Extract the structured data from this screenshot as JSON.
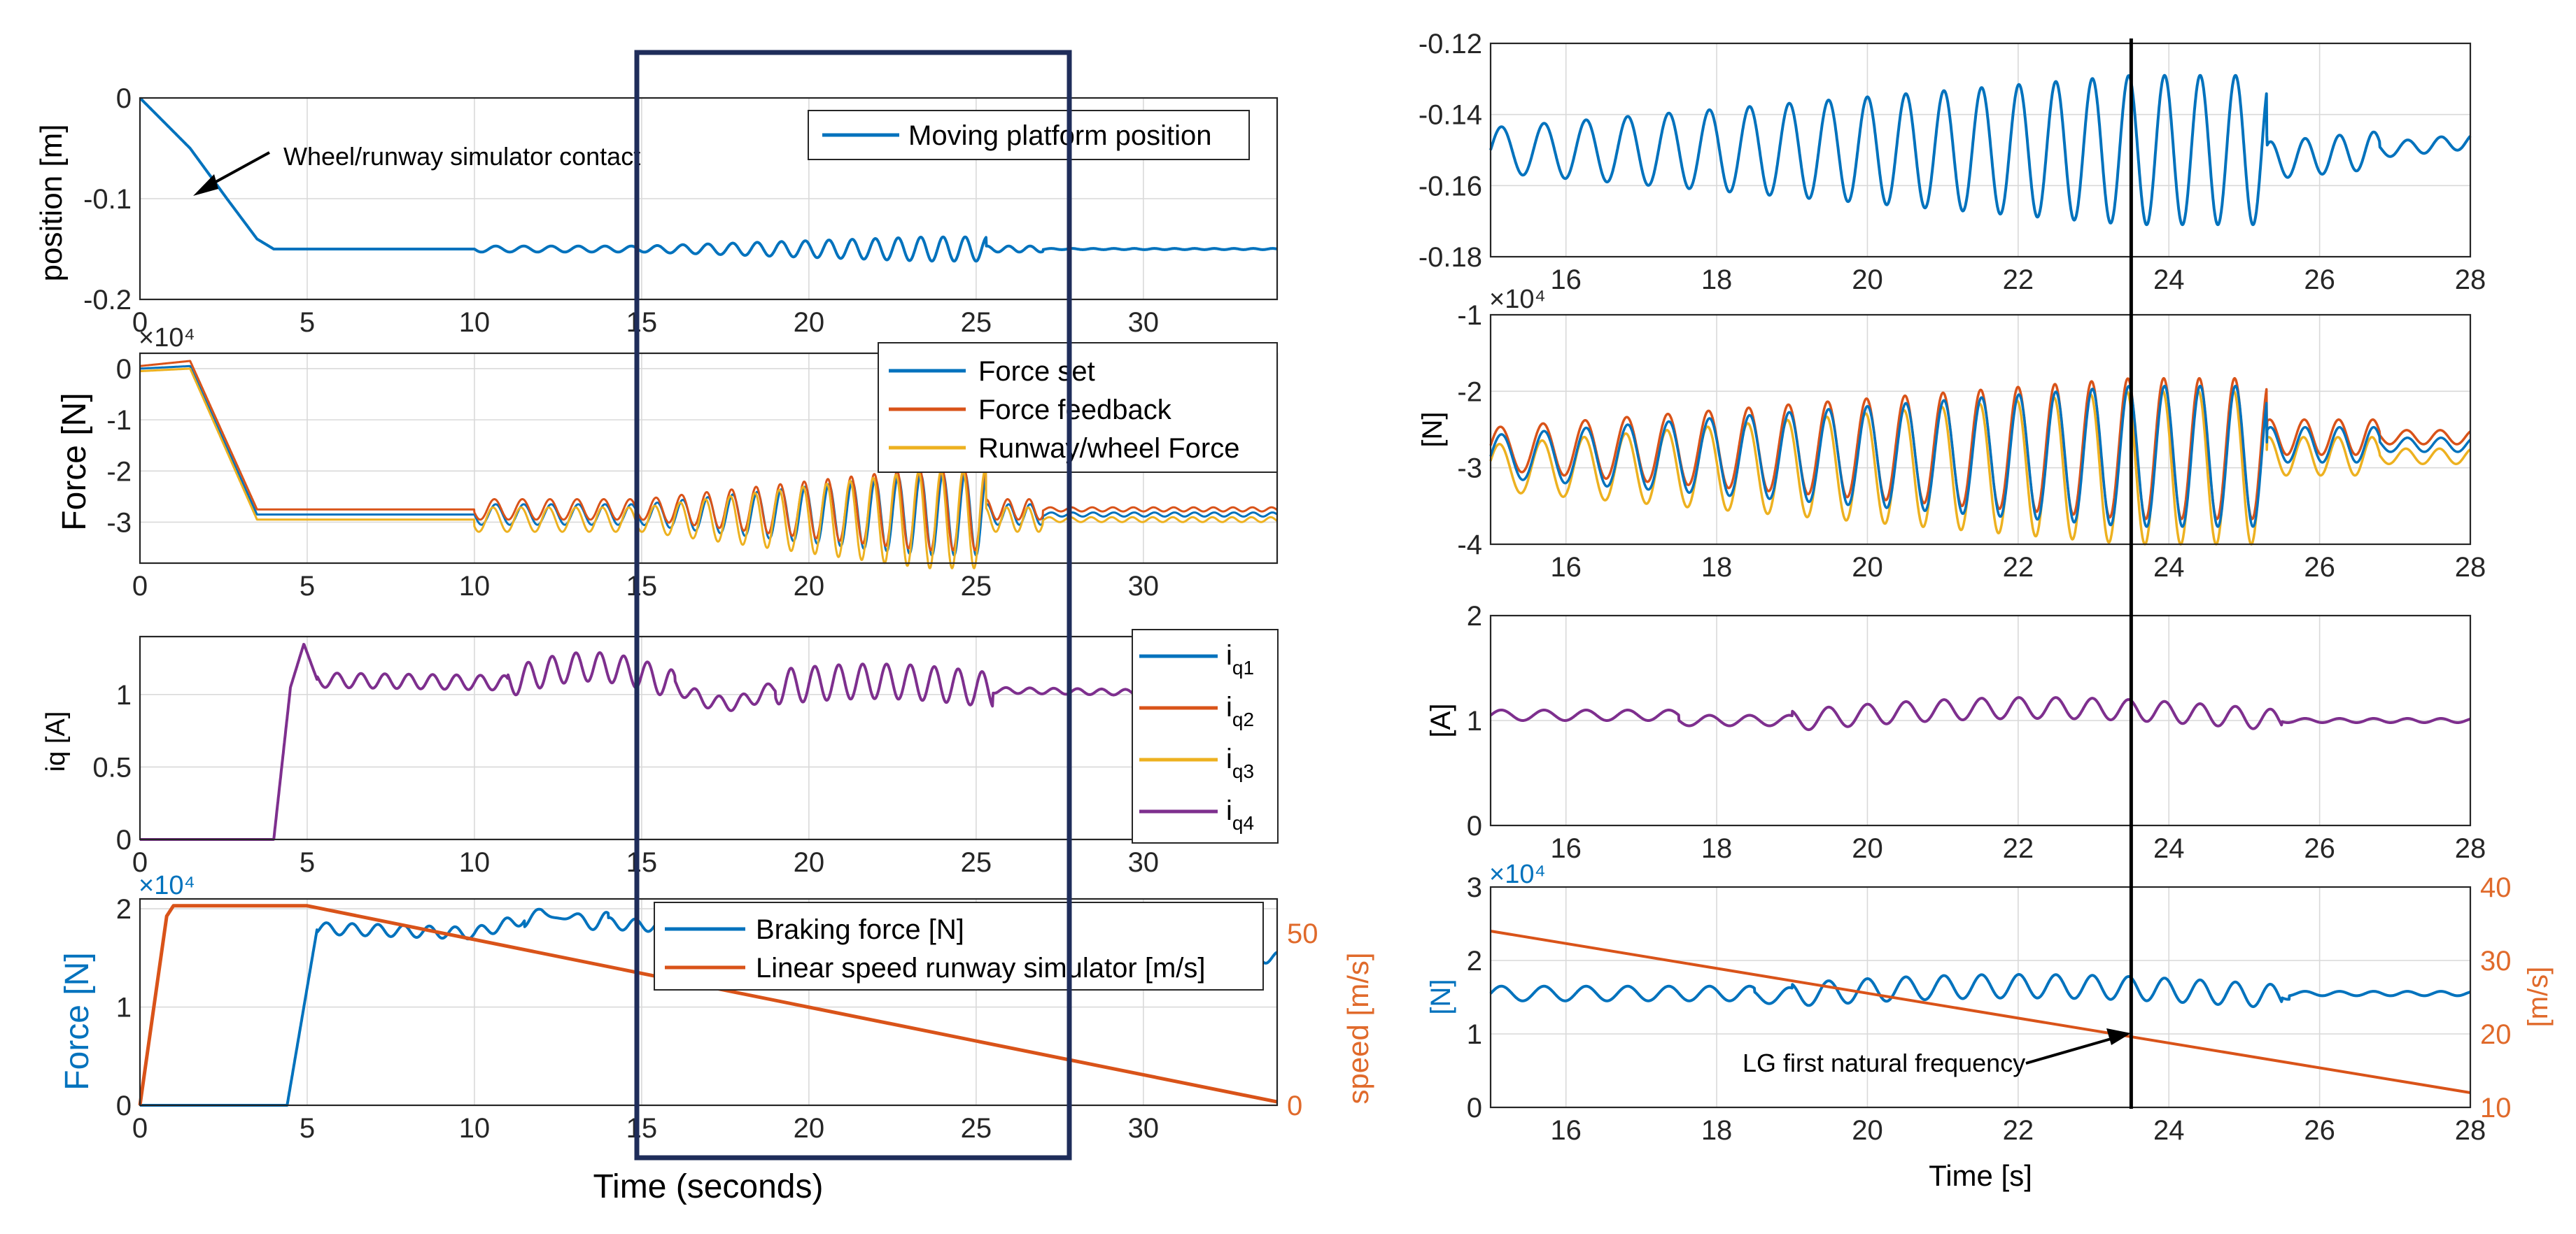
{
  "colors": {
    "blue": "#0072BD",
    "red": "#D95319",
    "yellow": "#EDB120",
    "purple": "#7E2F8E",
    "frame": "#1F2D5A",
    "orange_axis": "#E06A2B"
  },
  "chart_data": [
    {
      "id": "L1",
      "type": "line",
      "ylabel": "position [m]",
      "xlim": [
        0,
        34
      ],
      "ylim": [
        -0.2,
        0
      ],
      "xticks": [
        "0",
        "5",
        "10",
        "15",
        "20",
        "25",
        "30"
      ],
      "yticks": [
        "0",
        "-0.1",
        "-0.2"
      ],
      "legend": [
        "Moving platform position"
      ],
      "annotation": "Wheel/runway simulator contact",
      "series": [
        {
          "name": "Moving platform position",
          "color": "blue",
          "points": [
            [
              0,
              0
            ],
            [
              1.5,
              -0.05
            ],
            [
              2.6,
              -0.1
            ],
            [
              3.5,
              -0.14
            ],
            [
              4,
              -0.15
            ],
            [
              34,
              -0.15
            ]
          ]
        }
      ]
    },
    {
      "id": "L2",
      "type": "line",
      "ylabel": "Force  [N]",
      "multiplier": "×10⁴",
      "xlim": [
        0,
        34
      ],
      "ylim": [
        -3.8,
        0.3
      ],
      "xticks": [
        "0",
        "5",
        "10",
        "15",
        "20",
        "25",
        "30"
      ],
      "yticks": [
        "0",
        "-1",
        "-2",
        "-3"
      ],
      "legend": [
        "Force set",
        "Force feedback",
        "Runway/wheel Force"
      ],
      "series": [
        {
          "name": "Force set",
          "color": "blue",
          "points": [
            [
              0,
              0
            ],
            [
              1.5,
              0.05
            ],
            [
              3.5,
              -2.85
            ],
            [
              34,
              -2.85
            ]
          ]
        },
        {
          "name": "Force feedback",
          "color": "red",
          "points": [
            [
              0,
              0.05
            ],
            [
              1.5,
              0.15
            ],
            [
              3.5,
              -2.75
            ],
            [
              34,
              -2.75
            ]
          ]
        },
        {
          "name": "Runway/wheel Force",
          "color": "yellow",
          "points": [
            [
              0,
              -0.05
            ],
            [
              1.5,
              0.0
            ],
            [
              3.5,
              -2.95
            ],
            [
              34,
              -2.95
            ]
          ]
        }
      ]
    },
    {
      "id": "L3",
      "type": "line",
      "ylabel": "iq [A]",
      "xlim": [
        0,
        34
      ],
      "ylim": [
        0,
        1.4
      ],
      "xticks": [
        "0",
        "5",
        "10",
        "15",
        "20",
        "25",
        "30"
      ],
      "yticks": [
        "0",
        "0.5",
        "1"
      ],
      "legend": [
        "i",
        "i",
        "i",
        "i"
      ],
      "legend_sub": [
        "q1",
        "q2",
        "q3",
        "q4"
      ],
      "series": [
        {
          "name": "iq4",
          "color": "purple",
          "points": [
            [
              0,
              0
            ],
            [
              4,
              0
            ],
            [
              4.5,
              1.05
            ],
            [
              4.9,
              1.35
            ],
            [
              5.3,
              1.1
            ],
            [
              34,
              1.0
            ]
          ]
        }
      ]
    },
    {
      "id": "L4",
      "type": "line",
      "xlabel": "Time (seconds)",
      "ylabel": "Force  [N]",
      "y2label": "speed [m/s]",
      "multiplier": "×10⁴",
      "xlim": [
        0,
        34
      ],
      "ylim": [
        0,
        2.1
      ],
      "y2lim": [
        0,
        60
      ],
      "xticks": [
        "0",
        "5",
        "10",
        "15",
        "20",
        "25",
        "30"
      ],
      "yticks": [
        "0",
        "1",
        "2"
      ],
      "y2ticks": [
        "0",
        "50"
      ],
      "legend": [
        "Braking force [N]",
        "Linear speed runway simulator [m/s]"
      ],
      "series": [
        {
          "name": "Braking force [N]",
          "color": "blue",
          "points": [
            [
              0,
              0
            ],
            [
              4.4,
              0
            ],
            [
              5.3,
              1.8
            ],
            [
              10,
              1.75
            ],
            [
              12,
              1.95
            ],
            [
              14,
              1.85
            ],
            [
              34,
              1.5
            ]
          ]
        },
        {
          "name": "Linear speed runway simulator [m/s]",
          "color": "red",
          "axis": "right",
          "points": [
            [
              0,
              0
            ],
            [
              0.8,
              55
            ],
            [
              1,
              58
            ],
            [
              5,
              58
            ],
            [
              34,
              1
            ]
          ]
        }
      ]
    },
    {
      "id": "R1",
      "type": "line",
      "xlim": [
        15,
        28
      ],
      "ylim": [
        -0.18,
        -0.12
      ],
      "xticks": [
        "16",
        "18",
        "20",
        "22",
        "24",
        "26",
        "28"
      ],
      "yticks": [
        "-0.12",
        "-0.14",
        "-0.16",
        "-0.18"
      ],
      "series": [
        {
          "name": "Moving platform position",
          "color": "blue"
        }
      ]
    },
    {
      "id": "R2",
      "type": "line",
      "ylabel": "[N]",
      "multiplier": "×10⁴",
      "xlim": [
        15,
        28
      ],
      "ylim": [
        -4,
        -1
      ],
      "xticks": [
        "16",
        "18",
        "20",
        "22",
        "24",
        "26",
        "28"
      ],
      "yticks": [
        "-1",
        "-2",
        "-3",
        "-4"
      ],
      "series": [
        {
          "name": "Force set",
          "color": "blue"
        },
        {
          "name": "Force feedback",
          "color": "red"
        },
        {
          "name": "Runway/wheel Force",
          "color": "yellow"
        }
      ]
    },
    {
      "id": "R3",
      "type": "line",
      "ylabel": "[A]",
      "xlim": [
        15,
        28
      ],
      "ylim": [
        0,
        2
      ],
      "xticks": [
        "16",
        "18",
        "20",
        "22",
        "24",
        "26",
        "28"
      ],
      "yticks": [
        "0",
        "1",
        "2"
      ],
      "series": [
        {
          "name": "iq4",
          "color": "purple"
        }
      ]
    },
    {
      "id": "R4",
      "type": "line",
      "xlabel": "Time [s]",
      "ylabel": "[N]",
      "y2label": "[m/s]",
      "multiplier": "×10⁴",
      "xlim": [
        15,
        28
      ],
      "ylim": [
        0,
        3
      ],
      "y2lim": [
        10,
        40
      ],
      "xticks": [
        "16",
        "18",
        "20",
        "22",
        "24",
        "26",
        "28"
      ],
      "yticks": [
        "0",
        "1",
        "2",
        "3"
      ],
      "y2ticks": [
        "10",
        "20",
        "30",
        "40"
      ],
      "annotation": "LG first natural frequency",
      "marker_x": 23.5,
      "series": [
        {
          "name": "Braking force [N]",
          "color": "blue"
        },
        {
          "name": "Linear speed runway simulator [m/s]",
          "color": "red",
          "axis": "right",
          "points": [
            [
              15,
              34
            ],
            [
              28,
              12
            ]
          ]
        }
      ]
    }
  ]
}
